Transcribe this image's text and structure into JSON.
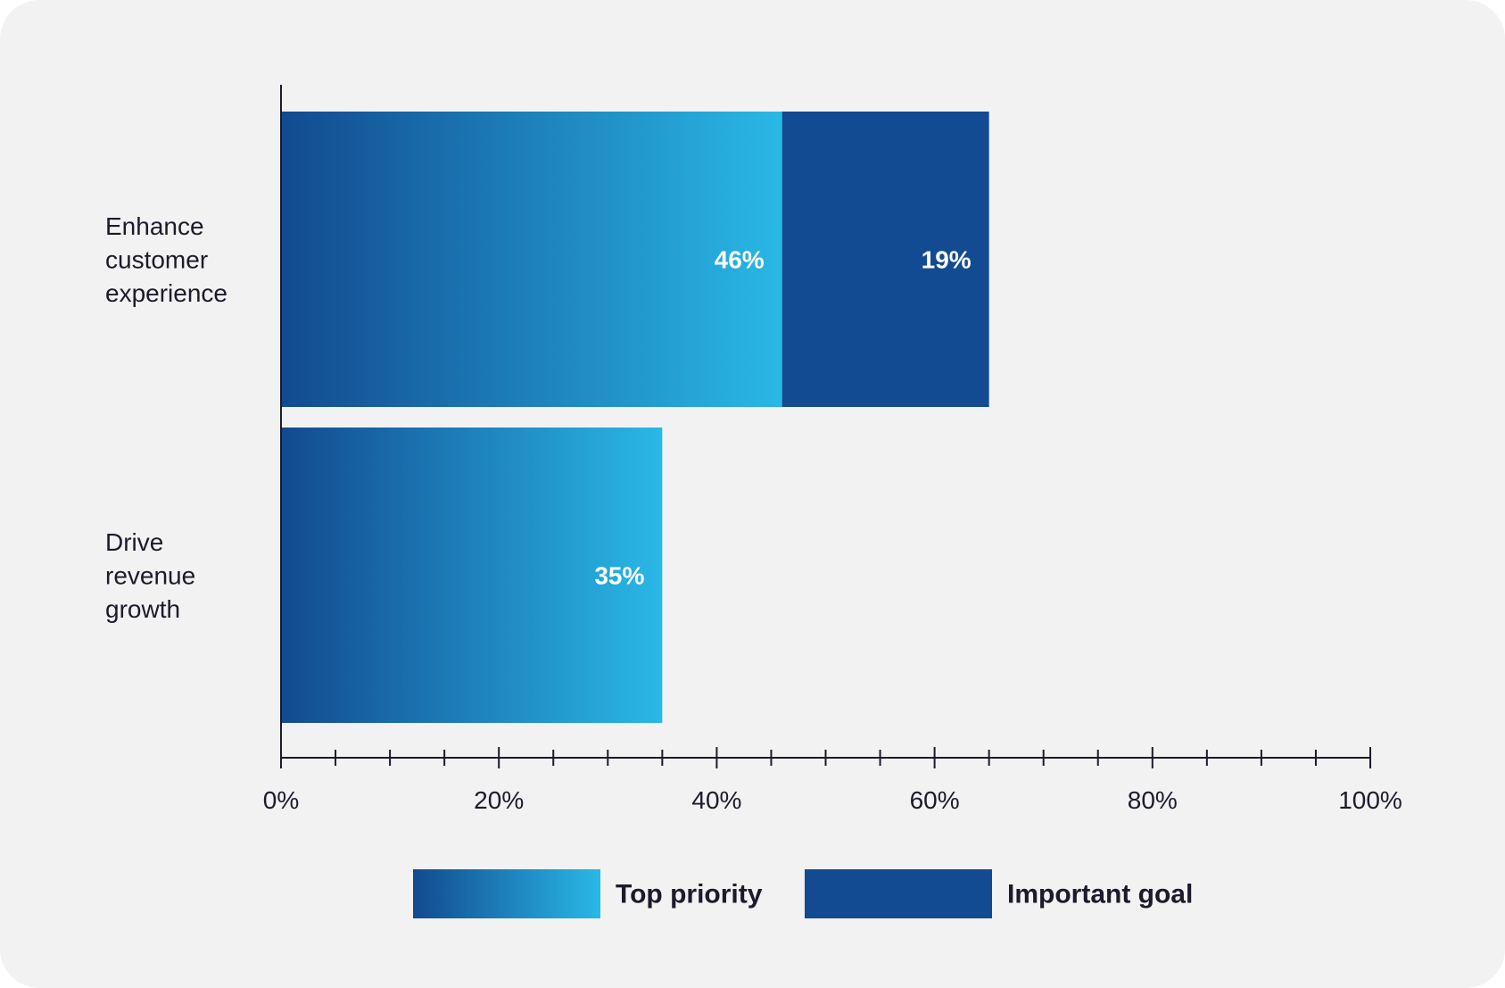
{
  "chart_data": {
    "type": "bar",
    "orientation": "horizontal",
    "stacked": true,
    "categories": [
      "Enhance customer experience",
      "Drive revenue growth"
    ],
    "category_label_lines": [
      [
        "Enhance",
        "customer",
        "experience"
      ],
      [
        "Drive",
        "revenue",
        "growth"
      ]
    ],
    "series": [
      {
        "name": "Top priority",
        "values": [
          46,
          35
        ],
        "labels": [
          "46%",
          "35%"
        ],
        "color_start": "#124a8f",
        "color_end": "#29b8e6"
      },
      {
        "name": "Important goal",
        "values": [
          19,
          null
        ],
        "labels": [
          "19%",
          ""
        ],
        "color": "#124b91"
      }
    ],
    "xlim": [
      0,
      100
    ],
    "x_ticks": [
      0,
      20,
      40,
      60,
      80,
      100
    ],
    "x_tick_labels": [
      "0%",
      "20%",
      "40%",
      "60%",
      "80%",
      "100%"
    ],
    "x_minor_step": 5,
    "legend_position": "bottom",
    "grid": false
  }
}
